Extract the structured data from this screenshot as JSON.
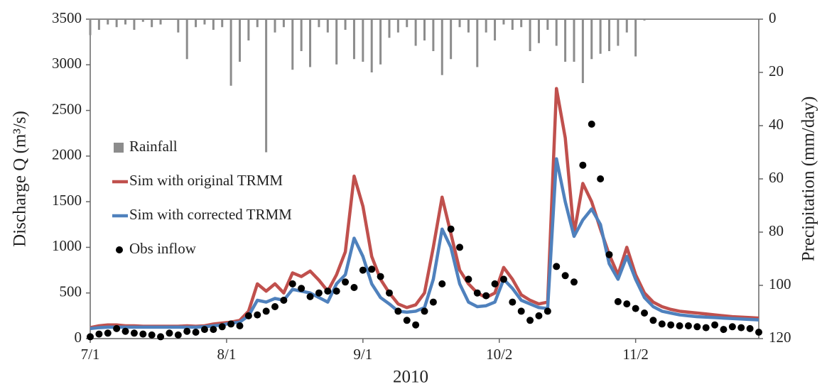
{
  "chart_data": {
    "type": "combo",
    "x_label": "2010",
    "y_label": "Discharge Q  (m³/s)",
    "y2_label": "Precipitation (mm/day)",
    "x": [
      0,
      2,
      4,
      6,
      8,
      10,
      12,
      14,
      16,
      18,
      20,
      22,
      24,
      26,
      28,
      30,
      32,
      34,
      36,
      38,
      40,
      42,
      44,
      46,
      48,
      50,
      52,
      54,
      56,
      58,
      60,
      62,
      64,
      66,
      68,
      70,
      72,
      74,
      76,
      78,
      80,
      82,
      84,
      86,
      88,
      90,
      92,
      94,
      96,
      98,
      100,
      102,
      104,
      106,
      108,
      110,
      112,
      114,
      116,
      118,
      120,
      122,
      124,
      126,
      128,
      130,
      132,
      134,
      136,
      138,
      140,
      142,
      144,
      146,
      148,
      150,
      152
    ],
    "xlim": [
      0,
      152
    ],
    "xticks": [
      {
        "value": 0,
        "label": "7/1"
      },
      {
        "value": 31,
        "label": "8/1"
      },
      {
        "value": 62,
        "label": "9/1"
      },
      {
        "value": 93,
        "label": "10/2"
      },
      {
        "value": 124,
        "label": "11/2"
      }
    ],
    "ylim": [
      0,
      3500
    ],
    "yticks": [
      0,
      500,
      1000,
      1500,
      2000,
      2500,
      3000,
      3500
    ],
    "y2lim": [
      0,
      120
    ],
    "y2ticks": [
      0,
      20,
      40,
      60,
      80,
      100,
      120
    ],
    "y2_inverted": true,
    "series": [
      {
        "name": "Rainfall",
        "kind": "bar",
        "axis": "y2",
        "color": "#8c8c8c",
        "values": [
          6,
          4,
          2,
          3,
          2,
          4,
          1,
          3,
          2,
          0,
          5,
          15,
          3,
          2,
          4,
          3,
          25,
          16,
          8,
          3,
          50,
          5,
          3,
          19,
          12,
          18,
          3,
          5,
          17,
          4,
          15,
          16,
          20,
          17,
          7,
          5,
          3,
          10,
          8,
          12,
          21,
          15,
          3,
          5,
          18,
          5,
          8,
          2,
          4,
          3,
          12,
          9,
          4,
          10,
          16,
          16,
          24,
          15,
          13,
          12,
          10,
          5,
          14,
          0.5,
          0,
          0,
          0,
          0,
          0,
          0,
          0,
          0,
          0,
          0,
          0,
          0,
          0
        ]
      },
      {
        "name": "Sim with original TRMM",
        "kind": "line",
        "color": "#c0504d",
        "values": [
          120,
          140,
          150,
          150,
          140,
          140,
          135,
          135,
          135,
          135,
          135,
          140,
          135,
          140,
          160,
          170,
          180,
          200,
          300,
          600,
          520,
          600,
          500,
          720,
          680,
          740,
          640,
          520,
          700,
          950,
          1780,
          1450,
          900,
          650,
          500,
          380,
          340,
          370,
          500,
          1000,
          1550,
          1150,
          750,
          600,
          500,
          450,
          500,
          780,
          650,
          480,
          420,
          380,
          400,
          2740,
          2200,
          1150,
          1700,
          1500,
          1200,
          920,
          700,
          1000,
          700,
          500,
          400,
          350,
          320,
          300,
          290,
          280,
          270,
          260,
          250,
          240,
          235,
          230,
          225
        ]
      },
      {
        "name": "Sim with corrected TRMM",
        "kind": "line",
        "color": "#4f81bd",
        "values": [
          110,
          120,
          125,
          125,
          125,
          125,
          125,
          125,
          125,
          125,
          125,
          125,
          125,
          130,
          140,
          150,
          170,
          180,
          250,
          420,
          400,
          440,
          420,
          540,
          520,
          500,
          450,
          400,
          600,
          700,
          1100,
          900,
          600,
          450,
          380,
          300,
          290,
          300,
          340,
          650,
          1200,
          1000,
          600,
          400,
          350,
          360,
          400,
          650,
          550,
          420,
          380,
          340,
          330,
          1970,
          1500,
          1120,
          1300,
          1420,
          1250,
          820,
          650,
          900,
          650,
          450,
          350,
          300,
          280,
          260,
          250,
          240,
          235,
          230,
          225,
          220,
          215,
          210,
          205
        ]
      },
      {
        "name": "Obs inflow",
        "kind": "scatter",
        "color": "#000000",
        "values": [
          20,
          50,
          60,
          110,
          80,
          60,
          50,
          40,
          20,
          60,
          40,
          80,
          70,
          100,
          100,
          130,
          160,
          140,
          250,
          260,
          300,
          350,
          420,
          600,
          550,
          460,
          500,
          520,
          520,
          620,
          560,
          750,
          760,
          680,
          500,
          300,
          200,
          150,
          300,
          400,
          600,
          1200,
          1000,
          650,
          500,
          470,
          600,
          650,
          400,
          300,
          200,
          250,
          300,
          790,
          690,
          620,
          1900,
          2350,
          1750,
          920,
          405,
          380,
          330,
          280,
          200,
          160,
          150,
          140,
          140,
          130,
          120,
          150,
          100,
          130,
          120,
          110,
          70
        ]
      }
    ]
  }
}
